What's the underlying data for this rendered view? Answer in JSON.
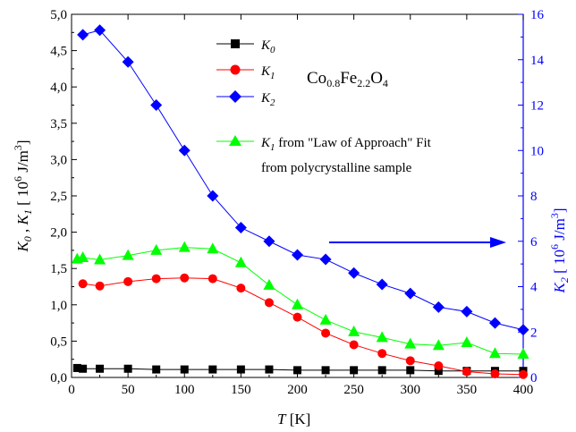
{
  "chart_data": {
    "type": "line",
    "xlabel": "T [K]",
    "ylabel_left": "K0, K1 [10^6 J/m^3]",
    "ylabel_right": "K2 [10^6 J/m^3]",
    "xlim": [
      0,
      400
    ],
    "ylim_left": [
      0,
      5
    ],
    "ylim_right": [
      0,
      16
    ],
    "x_ticks": [
      "0",
      "50",
      "100",
      "150",
      "200",
      "250",
      "300",
      "350",
      "400"
    ],
    "y_left_ticks": [
      "0,0",
      "0,5",
      "1,0",
      "1,5",
      "2,0",
      "2,5",
      "3,0",
      "3,5",
      "4,0",
      "4,5",
      "5,0"
    ],
    "y_right_ticks": [
      "0",
      "2",
      "4",
      "6",
      "8",
      "10",
      "12",
      "14",
      "16"
    ],
    "annotation": {
      "formula_base": "Co",
      "formula_sub1": "0.8",
      "formula_mid": "Fe",
      "formula_sub2": "2.2",
      "formula_end": "O",
      "formula_sub3": "4"
    },
    "legend_placement": "top-center",
    "series": [
      {
        "name": "K0",
        "axis": "left",
        "color": "#000000",
        "marker": "square",
        "x": [
          5,
          10,
          25,
          50,
          75,
          100,
          125,
          150,
          175,
          200,
          225,
          250,
          275,
          300,
          325,
          350,
          375,
          400
        ],
        "y": [
          0.13,
          0.12,
          0.12,
          0.12,
          0.11,
          0.11,
          0.11,
          0.11,
          0.11,
          0.1,
          0.1,
          0.1,
          0.1,
          0.1,
          0.09,
          0.09,
          0.09,
          0.09
        ]
      },
      {
        "name": "K1",
        "axis": "left",
        "color": "#ff0000",
        "marker": "circle",
        "x": [
          10,
          25,
          50,
          75,
          100,
          125,
          150,
          175,
          200,
          225,
          250,
          275,
          300,
          325,
          350,
          375,
          400
        ],
        "y": [
          1.29,
          1.26,
          1.32,
          1.36,
          1.37,
          1.36,
          1.23,
          1.03,
          0.83,
          0.61,
          0.45,
          0.33,
          0.23,
          0.16,
          0.08,
          0.05,
          0.04
        ]
      },
      {
        "name": "K2",
        "axis": "right",
        "color": "#0000ff",
        "marker": "diamond",
        "x": [
          10,
          25,
          50,
          75,
          100,
          125,
          150,
          175,
          200,
          225,
          250,
          275,
          300,
          325,
          350,
          375,
          400
        ],
        "y": [
          15.1,
          15.3,
          13.9,
          12.0,
          10.0,
          8.0,
          6.6,
          6.0,
          5.4,
          5.2,
          4.6,
          4.1,
          3.7,
          3.1,
          2.9,
          2.4,
          2.1
        ]
      },
      {
        "name": "K1 from \"Law of Approach\" Fit from polycrystalline sample",
        "axis": "left",
        "color": "#00ff00",
        "marker": "triangle",
        "x": [
          5,
          10,
          25,
          50,
          75,
          100,
          125,
          150,
          175,
          200,
          225,
          250,
          275,
          300,
          325,
          350,
          375,
          400
        ],
        "y": [
          1.63,
          1.65,
          1.62,
          1.68,
          1.75,
          1.79,
          1.77,
          1.58,
          1.27,
          1.0,
          0.79,
          0.63,
          0.55,
          0.46,
          0.44,
          0.48,
          0.33,
          0.32
        ]
      }
    ],
    "legend": {
      "k0": {
        "main": "K",
        "sub": "0"
      },
      "k1": {
        "main": "K",
        "sub": "1"
      },
      "k2": {
        "main": "K",
        "sub": "2"
      },
      "fit": {
        "main": "K",
        "sub": "1",
        "line1": " from \"Law of Approach\" Fit",
        "line2": "from polycrystalline sample"
      }
    },
    "axis_text": {
      "x_main": "T",
      "x_unit": " [K]",
      "left_k0": "K",
      "left_k0_sub": "0",
      "left_sep": " , ",
      "left_k1": "K",
      "left_k1_sub": "1",
      "left_unit_open": " [ 10",
      "left_exp": "6",
      "left_unit_mid": " J/m",
      "left_unit_exp": "3",
      "left_unit_close": "]",
      "right_k": "K",
      "right_sub": "2",
      "right_unit_open": " [ 10",
      "right_exp": "6",
      "right_unit_mid": " J/m",
      "right_unit_exp": "3",
      "right_unit_close": "]"
    }
  }
}
